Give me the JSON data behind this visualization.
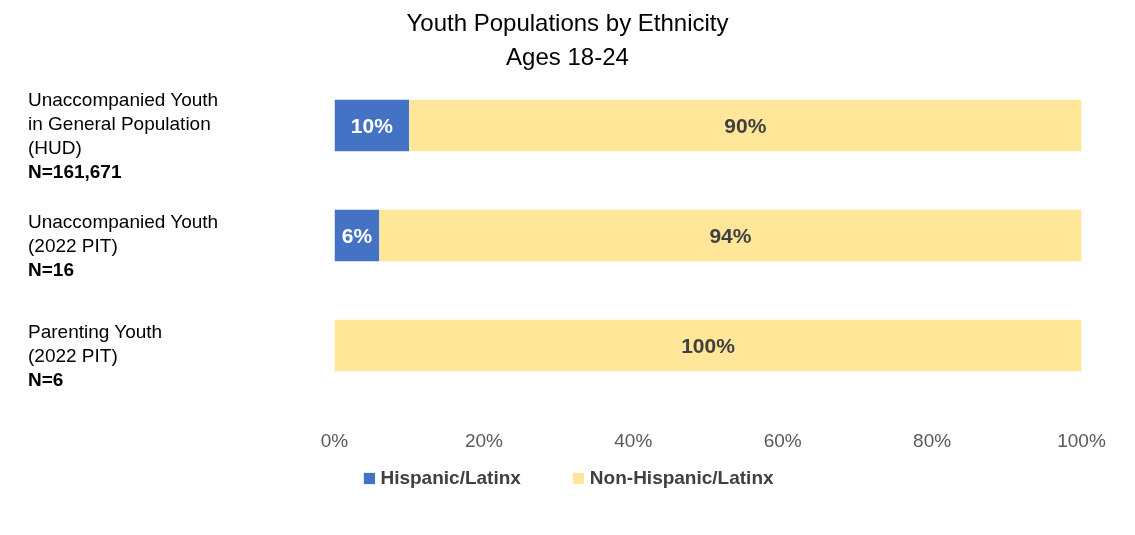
{
  "chart_data": {
    "type": "bar",
    "orientation": "horizontal",
    "stacked": true,
    "title": "Youth Populations by Ethnicity",
    "subtitle": "Ages 18-24",
    "categories": [
      "Unaccompanied Youth\nin General Population\n(HUD)\nN=161,671",
      "Unaccompanied Youth\n(2022 PIT)\nN=16",
      "Parenting Youth\n(2022 PIT)\nN=6"
    ],
    "series": [
      {
        "name": "Hispanic/Latinx",
        "color": "#4472c4",
        "values": [
          10,
          6,
          0
        ],
        "value_labels": [
          "10%",
          "6%",
          null
        ]
      },
      {
        "name": "Non-Hispanic/Latinx",
        "color": "#ffe699",
        "values": [
          90,
          94,
          100
        ],
        "value_labels": [
          "90%",
          "94%",
          "100%"
        ]
      }
    ],
    "xlim": [
      0,
      100
    ],
    "xticks": [
      {
        "value": 0,
        "label": "0%"
      },
      {
        "value": 20,
        "label": "20%"
      },
      {
        "value": 40,
        "label": "40%"
      },
      {
        "value": 60,
        "label": "60%"
      },
      {
        "value": 80,
        "label": "80%"
      },
      {
        "value": 100,
        "label": "100%"
      }
    ],
    "grid": false,
    "legend": "bottom"
  }
}
